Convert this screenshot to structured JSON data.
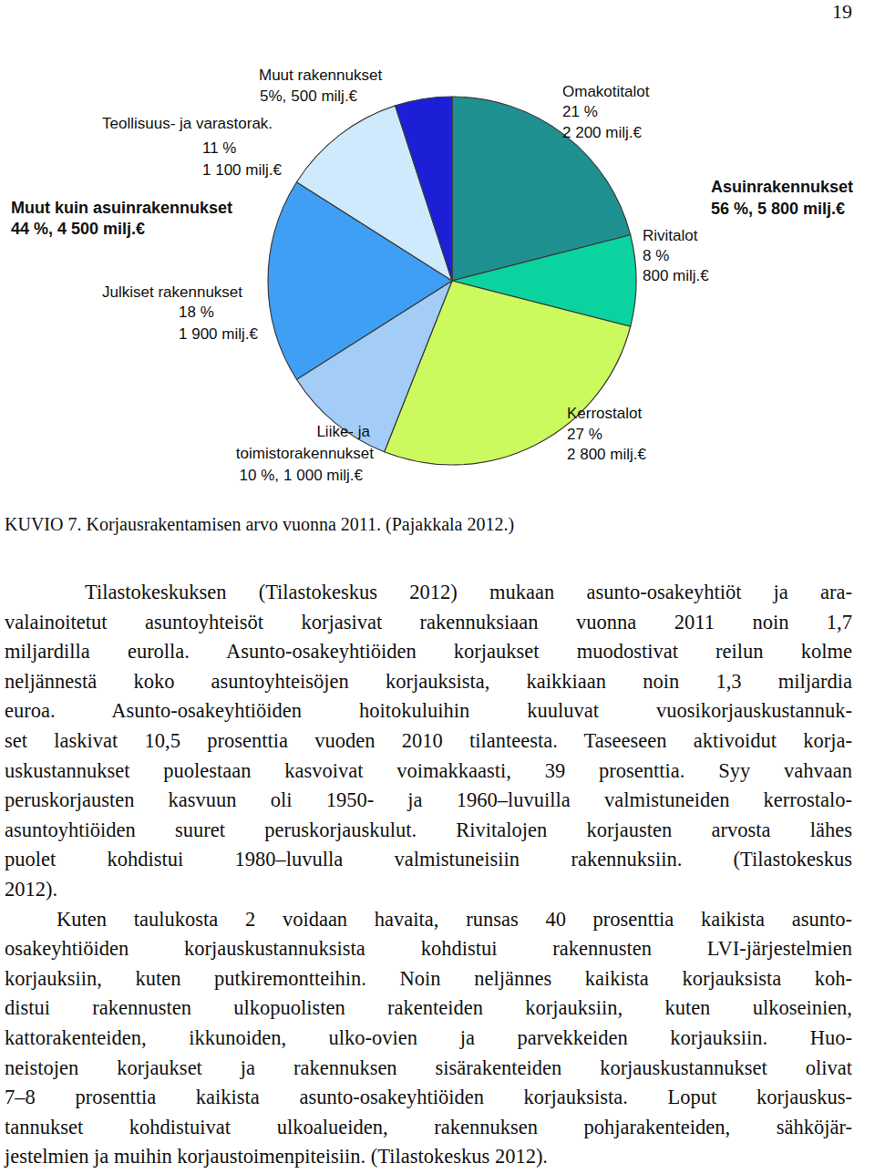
{
  "page_number": "19",
  "chart_data": {
    "type": "pie",
    "categories": [
      "Omakotitalot",
      "Rivitalot",
      "Kerrostalot",
      "Liike- ja toimistorakennukset",
      "Julkiset rakennukset",
      "Teollisuus- ja varastorak.",
      "Muut rakennukset"
    ],
    "values": [
      21,
      8,
      27,
      10,
      18,
      11,
      5
    ],
    "value_labels": [
      "21 %",
      "8 %",
      "27 %",
      "10 %,",
      "18 %",
      "11 %",
      "5%,"
    ],
    "amount_labels": [
      "2 200 milj.€",
      "800 milj.€",
      "2 800 milj.€",
      "1 000 milj.€",
      "1 900 milj.€",
      "1 100 milj.€",
      "500 milj.€"
    ],
    "colors": [
      "#1f9090",
      "#0ad39f",
      "#ccfa5e",
      "#a3ccf7",
      "#3f9ff5",
      "#cfe9fd",
      "#1d1fd6"
    ],
    "data_labels": true,
    "groups": [
      {
        "label": "Asuinrakennukset",
        "value_label": "56 %,",
        "amount_label": "5 800 milj.€"
      },
      {
        "label": "Muut kuin asuinrakennukset",
        "value_label": "44 %,",
        "amount_label": "4 500 milj.€"
      }
    ]
  },
  "caption": "KUVIO 7. Korjausrakentamisen arvo vuonna 2011. (Pajakkala 2012.)",
  "paragraphs": [
    [
      "Tilastokeskuksen (Tilastokeskus 2012) mukaan asunto-osakeyhtiöt ja ara-",
      "valainoitetut asuntoyhteisöt korjasivat rakennuksiaan vuonna 2011 noin 1,7",
      "miljardilla eurolla. Asunto-osakeyhtiöiden korjaukset muodostivat reilun kolme",
      "neljännestä koko asuntoyhteisöjen korjauksista, kaikkiaan noin 1,3 miljardia",
      "euroa. Asunto-osakeyhtiöiden hoitokuluihin kuuluvat vuosikorjauskustannuk-",
      "set laskivat 10,5 prosenttia vuoden 2010 tilanteesta. Taseeseen aktivoidut korja-",
      "uskustannukset puolestaan kasvoivat voimakkaasti, 39 prosenttia. Syy vahvaan",
      "peruskorjausten kasvuun oli 1950- ja 1960–luvuilla valmistuneiden kerrostalo-",
      "asuntoyhtiöiden suuret peruskorjauskulut. Rivitalojen korjausten arvosta lähes",
      "puolet kohdistui 1980–luvulla valmistuneisiin rakennuksiin. (Tilastokeskus",
      "2012)."
    ],
    [
      "Kuten taulukosta 2 voidaan havaita, runsas 40 prosenttia kaikista asunto-",
      "osakeyhtiöiden korjauskustannuksista kohdistui rakennusten LVI-järjestelmien",
      "korjauksiin, kuten putkiremontteihin. Noin neljännes kaikista korjauksista koh-",
      "distui rakennusten ulkopuolisten rakenteiden korjauksiin, kuten ulkoseinien,",
      "kattorakenteiden, ikkunoiden, ulko-ovien ja parvekkeiden korjauksiin. Huo-",
      "neistojen korjaukset ja rakennuksen sisärakenteiden korjauskustannukset olivat",
      "7–8 prosenttia kaikista asunto-osakeyhtiöiden korjauksista. Loput korjauskus-",
      "tannukset kohdistuivat ulkoalueiden, rakennuksen pohjarakenteiden, sähköjär-",
      "jestelmien ja muihin korjaustoimenpiteisiin. (Tilastokeskus 2012)."
    ]
  ]
}
